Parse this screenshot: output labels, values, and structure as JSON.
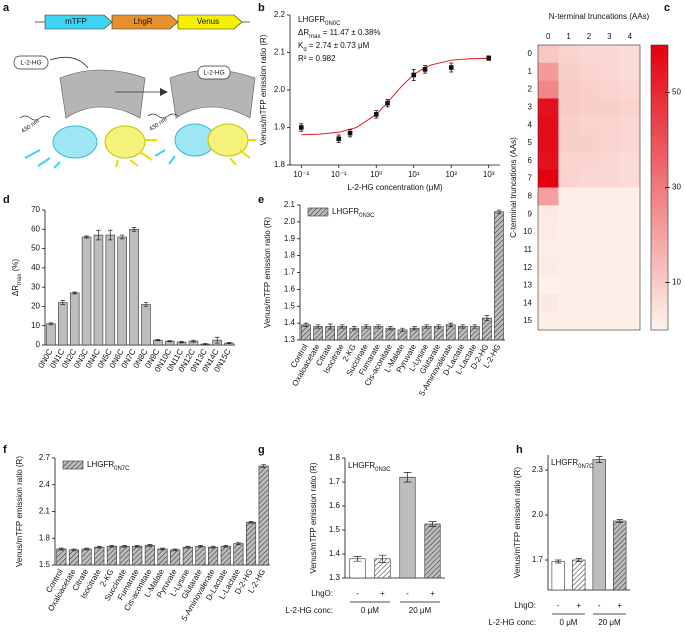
{
  "diagram": {
    "panel": "a",
    "genes": [
      "mTFP",
      "LhgR",
      "Venus"
    ],
    "ligand_left": "L-2-HG",
    "ligand_right": "L-2-HG",
    "excitation_left": "430 nm",
    "excitation_right": "430 nm"
  },
  "chart_data": [
    {
      "type": "scatter",
      "panel": "b",
      "color": "#111111",
      "xlabel": "L-2-HG concentration (μM)",
      "ylabel": "Venus/mTFP emission ratio (R)",
      "log_x": true,
      "annotations": [
        {
          "text": "LHGFR",
          "sub": "0N0C"
        },
        {
          "text": "ΔR",
          "sub": "max",
          "after": " = 11.47 ± 0.38%"
        },
        {
          "text": "K",
          "sub": "d",
          "after": " = 2.74 ± 0.73 μM"
        },
        {
          "text": "R² = 0.982"
        }
      ],
      "x": [
        0.01,
        0.1,
        0.2,
        1,
        2,
        10,
        20,
        100,
        1000
      ],
      "values": [
        1.9,
        1.87,
        1.885,
        1.935,
        1.965,
        2.04,
        2.055,
        2.06,
        2.085
      ],
      "errors": [
        0.01,
        0.01,
        0.01,
        0.01,
        0.01,
        0.015,
        0.01,
        0.012,
        0.006
      ],
      "fit": {
        "color": "#e31a1c",
        "x": [
          0.01,
          0.03,
          0.1,
          0.3,
          1,
          2,
          3,
          5,
          10,
          20,
          30,
          100,
          300,
          1000
        ],
        "values": [
          1.8807,
          1.8822,
          1.8872,
          1.9002,
          1.9348,
          1.9665,
          1.9871,
          2.0124,
          2.0409,
          2.0603,
          2.0672,
          2.0795,
          2.0832,
          2.0844
        ]
      },
      "xlim": [
        0.005,
        2000
      ],
      "xticks": [
        {
          "value": 0.01,
          "label": "10⁻²"
        },
        {
          "value": 0.1,
          "label": "10⁻¹"
        },
        {
          "value": 1,
          "label": "10⁰"
        },
        {
          "value": 10,
          "label": "10¹"
        },
        {
          "value": 100,
          "label": "10²"
        },
        {
          "value": 1000,
          "label": "10³"
        }
      ],
      "ylim": [
        1.8,
        2.2
      ],
      "yticks": [
        1.8,
        1.9,
        {
          "value": 2,
          "label": "2.0"
        },
        2.1,
        2.2
      ]
    },
    {
      "type": "heatmap",
      "panel": "c",
      "title": "N-terminal truncations (AAs)",
      "ylabel": "C-terminal truncations (AAs)",
      "x_categories": [
        0,
        1,
        2,
        3,
        4
      ],
      "y_categories": [
        0,
        1,
        2,
        3,
        4,
        5,
        6,
        7,
        8,
        9,
        10,
        11,
        12,
        13,
        14,
        15
      ],
      "z": [
        [
          11,
          8,
          7,
          7,
          6
        ],
        [
          22,
          9,
          8,
          7,
          6
        ],
        [
          27,
          10,
          9,
          8,
          7
        ],
        [
          56,
          10,
          9,
          9,
          8
        ],
        [
          57,
          9,
          8,
          8,
          7
        ],
        [
          57,
          9,
          9,
          8,
          7
        ],
        [
          56,
          8,
          8,
          7,
          6
        ],
        [
          60,
          8,
          7,
          7,
          6
        ],
        [
          21,
          1,
          1,
          1,
          1
        ],
        [
          2.5,
          1,
          1,
          1,
          1
        ],
        [
          2,
          1,
          1,
          1,
          1
        ],
        [
          1.5,
          1,
          1,
          1,
          1
        ],
        [
          2,
          1,
          1,
          1,
          1
        ],
        [
          0.5,
          1,
          1,
          1,
          1
        ],
        [
          2.5,
          1,
          1,
          1,
          1
        ],
        [
          1,
          1,
          1,
          1,
          1
        ]
      ],
      "cmap": [
        "#fdf3ec",
        "#e3000f"
      ],
      "zlim": [
        0,
        60
      ],
      "zticks": [
        10,
        30,
        50
      ]
    },
    {
      "type": "bar",
      "panel": "d",
      "color": "#bdbdbd",
      "ylabel": {
        "text": "ΔR",
        "sub": "max",
        "after": " (%)"
      },
      "categories": [
        "0N0C",
        "0N1C",
        "0N2C",
        "0N3C",
        "0N4C",
        "0N5C",
        "0N6C",
        "0N7C",
        "0N8C",
        "0N9C",
        "0N10C",
        "0N11C",
        "0N12C",
        "0N13C",
        "0N14C",
        "0N15C"
      ],
      "values": [
        11,
        22,
        27,
        56,
        57,
        57,
        56,
        60,
        21,
        2.5,
        2,
        1.5,
        2,
        0.5,
        2.5,
        1
      ],
      "errors": [
        0.5,
        1,
        0.5,
        0.5,
        2.5,
        2.5,
        1,
        1,
        1,
        0.3,
        0.3,
        0.4,
        0.5,
        0.3,
        1.5,
        0.3
      ],
      "ylim": [
        0,
        70
      ],
      "yticks": [
        0,
        10,
        20,
        30,
        40,
        50,
        60,
        70
      ]
    },
    {
      "type": "bar",
      "panel": "e",
      "color": "#bdbdbd",
      "hatch": true,
      "legend": {
        "text": "LHGFR",
        "sub": "0N3C"
      },
      "ylabel": "Venus/mTFP emission ratio (R)",
      "categories": [
        "Control",
        "Oxaloacetate",
        "Citrate",
        "Isocitrate",
        "2-KG",
        "Succinate",
        "Fumarate",
        "Cis-aconitate",
        "L-Malate",
        "Pyruvate",
        "L-Lysine",
        "Glutarate",
        "5-Aminovalerate",
        "D-Lactate",
        "L-Lactate",
        "D-2-HG",
        "L-2-HG"
      ],
      "values": [
        1.39,
        1.38,
        1.38,
        1.38,
        1.37,
        1.38,
        1.38,
        1.37,
        1.36,
        1.37,
        1.38,
        1.38,
        1.39,
        1.38,
        1.38,
        1.43,
        2.06
      ],
      "errors": [
        0.01,
        0.01,
        0.015,
        0.01,
        0.01,
        0.01,
        0.01,
        0.01,
        0.01,
        0.01,
        0.01,
        0.01,
        0.01,
        0.01,
        0.01,
        0.015,
        0.01
      ],
      "ylim": [
        1.3,
        2.1
      ],
      "yticks": [
        1.3,
        1.4,
        1.5,
        1.6,
        1.7,
        1.8,
        1.9,
        {
          "value": 2,
          "label": "2.0"
        },
        2.1
      ]
    },
    {
      "type": "bar",
      "panel": "f",
      "color": "#bdbdbd",
      "hatch": true,
      "legend": {
        "text": "LHGFR",
        "sub": "0N7C"
      },
      "ylabel": "Venus/mTFP emission ratio (R)",
      "categories": [
        "Control",
        "Oxaloacetate",
        "Citrate",
        "Isocitrate",
        "2-KG",
        "Succinate",
        "Fumarate",
        "Cis-aconitate",
        "L-Malate",
        "Pyruvate",
        "L-Lysine",
        "Glutarate",
        "5-Aminovalerate",
        "D-Lactate",
        "L-Lactate",
        "D-2-HG",
        "L-2-HG"
      ],
      "values": [
        1.68,
        1.67,
        1.68,
        1.7,
        1.71,
        1.71,
        1.71,
        1.72,
        1.68,
        1.67,
        1.7,
        1.71,
        1.7,
        1.71,
        1.74,
        1.98,
        2.61
      ],
      "errors": [
        0.01,
        0.01,
        0.01,
        0.01,
        0.01,
        0.01,
        0.01,
        0.01,
        0.01,
        0.01,
        0.01,
        0.01,
        0.01,
        0.01,
        0.01,
        0.01,
        0.015
      ],
      "ylim": [
        1.5,
        2.7
      ],
      "yticks": [
        1.5,
        1.8,
        2.1,
        2.4,
        2.7
      ]
    },
    {
      "type": "bar",
      "panel": "g",
      "colors": [
        "#ffffff",
        "#ffffff",
        "#bdbdbd",
        "#bdbdbd"
      ],
      "hatch": [
        false,
        true,
        false,
        true
      ],
      "legend": {
        "text": "LHGFR",
        "sub": "0N3C"
      },
      "ylabel": "Venus/mTFP emission ratio (R)",
      "lhgo_label": "LhgO:",
      "lhgo": [
        "-",
        "+",
        "-",
        "+"
      ],
      "conc_label": "L-2-HG conc:",
      "conc": [
        "0 μM",
        "20 μM"
      ],
      "values": [
        1.38,
        1.38,
        1.72,
        1.525
      ],
      "errors": [
        0.01,
        0.015,
        0.02,
        0.01
      ],
      "ylim": [
        1.3,
        1.8
      ],
      "yticks": [
        1.3,
        1.4,
        1.5,
        1.6,
        1.7,
        1.8
      ]
    },
    {
      "type": "bar",
      "panel": "h",
      "colors": [
        "#ffffff",
        "#ffffff",
        "#bdbdbd",
        "#bdbdbd"
      ],
      "hatch": [
        false,
        true,
        false,
        true
      ],
      "legend": {
        "text": "LHGFR",
        "sub": "0N7C"
      },
      "ylabel": "Venus/mTFP emission ratio (R)",
      "lhgo_label": "LhgO:",
      "lhgo": [
        "-",
        "+",
        "-",
        "+"
      ],
      "conc_label": "L-2-HG conc:",
      "conc": [
        "0 μM",
        "20 μM"
      ],
      "values": [
        1.69,
        1.7,
        2.37,
        1.96
      ],
      "errors": [
        0.01,
        0.01,
        0.02,
        0.01
      ],
      "ylim": [
        1.5,
        2.4
      ],
      "yticks": [
        1.7,
        {
          "value": 2,
          "label": "2.0"
        },
        2.3
      ]
    }
  ]
}
